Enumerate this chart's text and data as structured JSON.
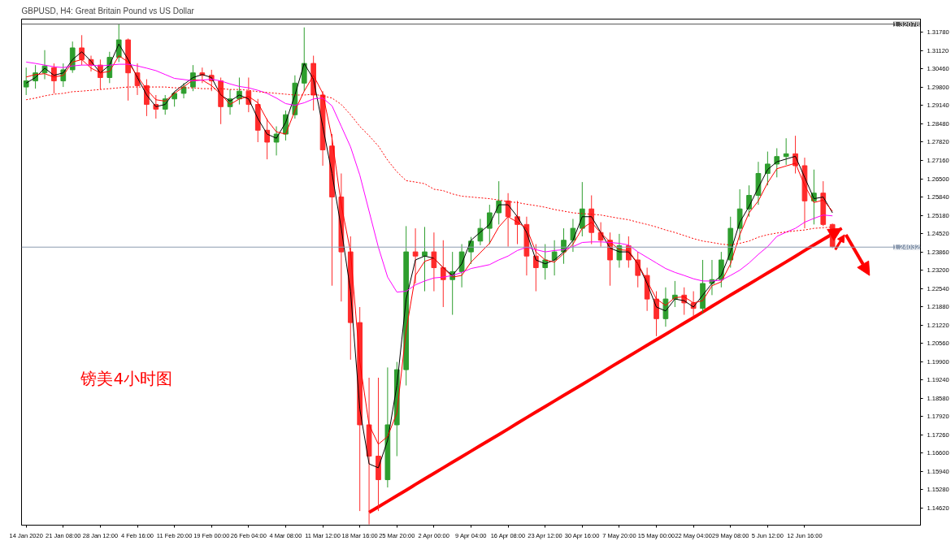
{
  "chart_data": {
    "type": "candlestick",
    "title": "GBPUSD, H4: Great Britain Pound vs US Dollar",
    "annotations": [
      "镑美4小时图"
    ],
    "categories": [
      "14 Jan 2020",
      null,
      null,
      null,
      "21 Jan 08:00",
      null,
      null,
      null,
      "28 Jan 12:00",
      null,
      null,
      null,
      "4 Feb 16:00",
      null,
      null,
      null,
      "11 Feb 20:00",
      null,
      null,
      null,
      "19 Feb 00:00",
      null,
      null,
      null,
      "26 Feb 04:00",
      null,
      null,
      null,
      "4 Mar 08:00",
      null,
      null,
      null,
      "11 Mar 12:00",
      null,
      null,
      null,
      "18 Mar 16:00",
      null,
      null,
      null,
      "25 Mar 20:00",
      null,
      null,
      null,
      "2 Apr 00:00",
      null,
      null,
      null,
      "9 Apr 04:00",
      null,
      null,
      null,
      "16 Apr 08:00",
      null,
      null,
      null,
      "23 Apr 12:00",
      null,
      null,
      null,
      "30 Apr 16:00",
      null,
      null,
      null,
      "7 May 20:00",
      null,
      null,
      null,
      "15 May 00:00",
      null,
      null,
      null,
      "22 May 04:00",
      null,
      null,
      null,
      "29 May 08:00",
      null,
      null,
      null,
      "5 Jun 12:00",
      null,
      null,
      null,
      "12 Jun 16:00",
      null,
      null,
      null,
      null,
      null,
      null,
      null,
      null,
      null,
      null,
      null,
      null
    ],
    "ohlc": [
      [
        1.2981,
        1.3051,
        1.2952,
        1.3003
      ],
      [
        1.3003,
        1.306,
        1.2975,
        1.3032
      ],
      [
        1.3032,
        1.3114,
        1.3009,
        1.3057
      ],
      [
        1.3051,
        1.3066,
        1.2958,
        1.3003
      ],
      [
        1.3003,
        1.3066,
        1.2981,
        1.3043
      ],
      [
        1.3043,
        1.3145,
        1.3032,
        1.3122
      ],
      [
        1.3122,
        1.3168,
        1.306,
        1.308
      ],
      [
        1.308,
        1.3094,
        1.3037,
        1.306
      ],
      [
        1.306,
        1.308,
        1.2972,
        1.3015
      ],
      [
        1.3015,
        1.3108,
        1.2995,
        1.3088
      ],
      [
        1.3088,
        1.3207,
        1.3071,
        1.3151
      ],
      [
        1.3151,
        1.3156,
        1.2932,
        1.3032
      ],
      [
        1.3032,
        1.3066,
        1.2952,
        1.2986
      ],
      [
        1.2986,
        1.3009,
        1.2876,
        1.2918
      ],
      [
        1.2918,
        1.2952,
        1.2867,
        1.2901
      ],
      [
        1.2901,
        1.2952,
        1.2881,
        1.2938
      ],
      [
        1.2938,
        1.2965,
        1.291,
        1.2958
      ],
      [
        1.2958,
        1.2995,
        1.294,
        1.2981
      ],
      [
        1.2981,
        1.306,
        1.2966,
        1.3032
      ],
      [
        1.3032,
        1.3051,
        1.2995,
        1.3023
      ],
      [
        1.3023,
        1.3043,
        1.2966,
        1.3003
      ],
      [
        1.3003,
        1.3015,
        1.2847,
        1.291
      ],
      [
        1.291,
        1.2972,
        1.2881,
        1.2938
      ],
      [
        1.2938,
        1.3015,
        1.2918,
        1.2966
      ],
      [
        1.2966,
        1.3015,
        1.289,
        1.2918
      ],
      [
        1.2918,
        1.2938,
        1.2782,
        1.2825
      ],
      [
        1.2825,
        1.2867,
        1.272,
        1.2782
      ],
      [
        1.2782,
        1.2839,
        1.2734,
        1.2811
      ],
      [
        1.2811,
        1.2896,
        1.2788,
        1.2881
      ],
      [
        1.2881,
        1.3023,
        1.2867,
        1.2995
      ],
      [
        1.2995,
        1.3196,
        1.2966,
        1.3066
      ],
      [
        1.3066,
        1.3094,
        1.2896,
        1.2952
      ],
      [
        1.2952,
        1.2966,
        1.2697,
        1.2754
      ],
      [
        1.2768,
        1.2811,
        1.2264,
        1.2584
      ],
      [
        1.2584,
        1.2669,
        1.2207,
        1.2386
      ],
      [
        1.2386,
        1.2442,
        1.1997,
        1.2131
      ],
      [
        1.2131,
        1.2187,
        1.1451,
        1.1762
      ],
      [
        1.1762,
        1.1932,
        1.1403,
        1.1649
      ],
      [
        1.1649,
        1.1932,
        1.1451,
        1.1564
      ],
      [
        1.1564,
        1.1969,
        1.1536,
        1.1762
      ],
      [
        1.1762,
        1.1989,
        1.1649,
        1.1961
      ],
      [
        1.1961,
        1.2479,
        1.1904,
        1.2386
      ],
      [
        1.2386,
        1.2471,
        1.2272,
        1.2371
      ],
      [
        1.2371,
        1.2476,
        1.2244,
        1.2386
      ],
      [
        1.2386,
        1.2456,
        1.2244,
        1.2329
      ],
      [
        1.2329,
        1.2428,
        1.2187,
        1.2286
      ],
      [
        1.2286,
        1.2386,
        1.2159,
        1.2315
      ],
      [
        1.2315,
        1.2414,
        1.2258,
        1.2386
      ],
      [
        1.2386,
        1.244,
        1.2343,
        1.2425
      ],
      [
        1.2425,
        1.2505,
        1.241,
        1.2471
      ],
      [
        1.2471,
        1.2556,
        1.2414,
        1.2527
      ],
      [
        1.2527,
        1.2641,
        1.2485,
        1.257
      ],
      [
        1.257,
        1.2598,
        1.2405,
        1.2513
      ],
      [
        1.2513,
        1.257,
        1.2414,
        1.2485
      ],
      [
        1.2485,
        1.2513,
        1.2301,
        1.2371
      ],
      [
        1.2371,
        1.2414,
        1.2244,
        1.2329
      ],
      [
        1.2329,
        1.2414,
        1.2286,
        1.2357
      ],
      [
        1.2357,
        1.2428,
        1.2301,
        1.2386
      ],
      [
        1.2386,
        1.2471,
        1.2343,
        1.2428
      ],
      [
        1.2428,
        1.2505,
        1.2386,
        1.2471
      ],
      [
        1.2471,
        1.2638,
        1.2442,
        1.2541
      ],
      [
        1.2541,
        1.259,
        1.2414,
        1.2456
      ],
      [
        1.2456,
        1.2493,
        1.2405,
        1.2428
      ],
      [
        1.2428,
        1.2456,
        1.2264,
        1.2357
      ],
      [
        1.2357,
        1.2451,
        1.2329,
        1.2408
      ],
      [
        1.2408,
        1.2442,
        1.2329,
        1.2357
      ],
      [
        1.2357,
        1.2386,
        1.2258,
        1.2301
      ],
      [
        1.2301,
        1.2329,
        1.2173,
        1.2216
      ],
      [
        1.2216,
        1.2244,
        1.2082,
        1.2145
      ],
      [
        1.2145,
        1.2258,
        1.2116,
        1.2216
      ],
      [
        1.2216,
        1.2281,
        1.2187,
        1.223
      ],
      [
        1.223,
        1.2258,
        1.2159,
        1.2202
      ],
      [
        1.2202,
        1.2244,
        1.2153,
        1.2182
      ],
      [
        1.2182,
        1.2357,
        1.2165,
        1.2272
      ],
      [
        1.2272,
        1.2357,
        1.223,
        1.2286
      ],
      [
        1.2286,
        1.2386,
        1.2258,
        1.2357
      ],
      [
        1.2357,
        1.2513,
        1.2329,
        1.2471
      ],
      [
        1.2471,
        1.2612,
        1.2428,
        1.2541
      ],
      [
        1.2541,
        1.2626,
        1.2513,
        1.259
      ],
      [
        1.259,
        1.2711,
        1.2556,
        1.2669
      ],
      [
        1.2669,
        1.2748,
        1.2626,
        1.2703
      ],
      [
        1.2703,
        1.276,
        1.2655,
        1.273
      ],
      [
        1.273,
        1.2796,
        1.27,
        1.274
      ],
      [
        1.274,
        1.2805,
        1.2669,
        1.2697
      ],
      [
        1.2697,
        1.2726,
        1.2471,
        1.257
      ],
      [
        1.257,
        1.2683,
        1.2485,
        1.2598
      ],
      [
        1.2598,
        1.2641,
        1.2479,
        1.2485
      ],
      [
        1.2485,
        1.2488,
        1.24,
        1.2405
      ],
      null,
      null,
      null,
      null,
      null,
      null,
      null,
      null,
      null
    ],
    "colors": [
      "#2e9e2e",
      "#2e9e2e",
      "#2e9e2e",
      "#ff2b2b",
      "#2e9e2e",
      "#2e9e2e",
      "#ff2b2b",
      "#ff2b2b",
      "#ff2b2b",
      "#2e9e2e",
      "#2e9e2e",
      "#ff2b2b",
      "#ff2b2b",
      "#ff2b2b",
      "#ff2b2b",
      "#2e9e2e",
      "#2e9e2e",
      "#2e9e2e",
      "#2e9e2e",
      "#ff2b2b",
      "#ff2b2b",
      "#ff2b2b",
      "#2e9e2e",
      "#2e9e2e",
      "#ff2b2b",
      "#ff2b2b",
      "#ff2b2b",
      "#2e9e2e",
      "#2e9e2e",
      "#2e9e2e",
      "#2e9e2e",
      "#ff2b2b",
      "#ff2b2b",
      "#ff2b2b",
      "#ff2b2b",
      "#ff2b2b",
      "#ff2b2b",
      "#ff2b2b",
      "#ff2b2b",
      "#2e9e2e",
      "#2e9e2e",
      "#2e9e2e",
      "#ff2b2b",
      "#2e9e2e",
      "#ff2b2b",
      "#ff2b2b",
      "#2e9e2e",
      "#2e9e2e",
      "#2e9e2e",
      "#2e9e2e",
      "#2e9e2e",
      "#2e9e2e",
      "#ff2b2b",
      "#ff2b2b",
      "#ff2b2b",
      "#ff2b2b",
      "#2e9e2e",
      "#2e9e2e",
      "#2e9e2e",
      "#2e9e2e",
      "#2e9e2e",
      "#ff2b2b",
      "#ff2b2b",
      "#ff2b2b",
      "#2e9e2e",
      "#ff2b2b",
      "#ff2b2b",
      "#ff2b2b",
      "#ff2b2b",
      "#2e9e2e",
      "#2e9e2e",
      "#ff2b2b",
      "#ff2b2b",
      "#2e9e2e",
      "#2e9e2e",
      "#2e9e2e",
      "#2e9e2e",
      "#2e9e2e",
      "#2e9e2e",
      "#2e9e2e",
      "#2e9e2e",
      "#2e9e2e",
      "#2e9e2e",
      "#ff2b2b",
      "#ff2b2b",
      "#2e9e2e",
      "#ff2b2b",
      "#ff2b2b",
      null,
      null,
      null,
      null,
      null,
      null,
      null,
      null,
      null
    ],
    "series": [
      {
        "type": "line",
        "color": "#000000",
        "values": [
          1.2995,
          1.3015,
          1.3049,
          1.3023,
          1.3032,
          1.308,
          1.3108,
          1.3074,
          1.3032,
          1.306,
          1.3136,
          1.308,
          1.3015,
          1.2952,
          1.291,
          1.2918,
          1.2964,
          1.299,
          1.3015,
          1.3026,
          1.3015,
          1.2952,
          1.293,
          1.2952,
          1.2938,
          1.2867,
          1.2811,
          1.2796,
          1.2853,
          1.2952,
          1.3066,
          1.3009,
          1.2839,
          1.2669,
          1.2471,
          1.2244,
          1.1819,
          1.1621,
          1.1607,
          1.1706,
          1.1904,
          1.2216,
          1.2357,
          1.2371,
          1.2363,
          1.2329,
          1.2301,
          1.2343,
          1.2428,
          1.2457,
          1.2485,
          1.2556,
          1.2556,
          1.2513,
          1.2456,
          1.2357,
          1.2343,
          1.2357,
          1.2386,
          1.2428,
          1.2513,
          1.2513,
          1.2456,
          1.24,
          1.2386,
          1.2386,
          1.2343,
          1.2272,
          1.2187,
          1.2173,
          1.2216,
          1.221,
          1.2187,
          1.223,
          1.2272,
          1.2301,
          1.2386,
          1.2493,
          1.255,
          1.2618,
          1.2683,
          1.2711,
          1.2721,
          1.2731,
          1.2655,
          1.2578,
          1.2584,
          1.2527,
          null,
          null,
          null,
          null,
          null,
          null,
          null,
          null,
          null
        ]
      },
      {
        "type": "line",
        "color": "#ff0000",
        "values": [
          1.3017,
          1.3026,
          1.3029,
          1.3017,
          1.3023,
          1.3071,
          1.308,
          1.3049,
          1.3032,
          1.3037,
          1.3094,
          1.3071,
          1.302,
          1.2972,
          1.2935,
          1.293,
          1.2958,
          1.2982,
          1.3006,
          1.3006,
          1.2986,
          1.2955,
          1.2918,
          1.2938,
          1.2947,
          1.2924,
          1.2862,
          1.2819,
          1.2811,
          1.2896,
          1.2966,
          1.3023,
          1.2958,
          1.2796,
          1.2556,
          1.2386,
          1.1989,
          1.1762,
          1.1692,
          1.172,
          1.1805,
          1.2102,
          1.2301,
          1.2352,
          1.2363,
          1.2329,
          1.2295,
          1.2301,
          1.2349,
          1.2383,
          1.2417,
          1.2476,
          1.2513,
          1.2493,
          1.2471,
          1.2386,
          1.2357,
          1.2349,
          1.238,
          1.2414,
          1.2471,
          1.2493,
          1.2454,
          1.2422,
          1.2394,
          1.2391,
          1.2343,
          1.2281,
          1.2216,
          1.2193,
          1.2221,
          1.2224,
          1.2202,
          1.221,
          1.2264,
          1.2278,
          1.2343,
          1.2448,
          1.2527,
          1.257,
          1.2635,
          1.2686,
          1.2696,
          1.2706,
          1.2626,
          1.2564,
          1.2573,
          1.2533,
          null,
          null,
          null,
          null,
          null,
          null,
          null,
          null,
          null
        ]
      },
      {
        "type": "line",
        "color": "#ff00ff",
        "values": [
          1.3071,
          1.3066,
          1.306,
          1.3054,
          1.3051,
          1.3057,
          1.306,
          1.306,
          1.3057,
          1.306,
          1.3063,
          1.3063,
          1.3057,
          1.3049,
          1.304,
          1.3026,
          1.3012,
          1.3008,
          1.3003,
          1.3006,
          1.3009,
          1.3003,
          1.2992,
          1.2983,
          1.2978,
          1.2969,
          1.2958,
          1.2941,
          1.2921,
          1.2915,
          1.2924,
          1.2938,
          1.2941,
          1.2913,
          1.2839,
          1.2765,
          1.2663,
          1.2533,
          1.2403,
          1.2295,
          1.2241,
          1.2244,
          1.2267,
          1.2281,
          1.2292,
          1.2295,
          1.2301,
          1.2312,
          1.2326,
          1.2333,
          1.234,
          1.2357,
          1.2371,
          1.2391,
          1.2403,
          1.2394,
          1.2386,
          1.2391,
          1.2394,
          1.2405,
          1.242,
          1.2422,
          1.2422,
          1.242,
          1.2417,
          1.2411,
          1.2386,
          1.2366,
          1.2346,
          1.2326,
          1.2312,
          1.2301,
          1.2289,
          1.2281,
          1.2281,
          1.2284,
          1.2301,
          1.232,
          1.2346,
          1.2377,
          1.2405,
          1.2442,
          1.2457,
          1.2471,
          1.2493,
          1.2507,
          1.2519,
          1.2516,
          null,
          null,
          null,
          null,
          null,
          null,
          null,
          null,
          null
        ]
      },
      {
        "type": "line",
        "color": "#ff0000",
        "line_style": "dotted",
        "values": [
          1.2935,
          1.2941,
          1.2949,
          1.2955,
          1.2958,
          1.2964,
          1.2966,
          1.2969,
          1.2972,
          1.2975,
          1.2978,
          1.2981,
          1.2981,
          1.2981,
          1.2981,
          1.2981,
          1.2978,
          1.2978,
          1.2978,
          1.2975,
          1.2975,
          1.2975,
          1.2972,
          1.2972,
          1.2969,
          1.2964,
          1.2961,
          1.2958,
          1.2955,
          1.2952,
          1.2952,
          1.2955,
          1.2949,
          1.2941,
          1.2918,
          1.2881,
          1.2839,
          1.2805,
          1.2768,
          1.2717,
          1.2675,
          1.2643,
          1.2638,
          1.2632,
          1.2612,
          1.2607,
          1.2595,
          1.2587,
          1.2584,
          1.2581,
          1.2578,
          1.2573,
          1.2567,
          1.2564,
          1.2558,
          1.2553,
          1.2547,
          1.2539,
          1.2533,
          1.2527,
          1.2524,
          1.2522,
          1.2519,
          1.2513,
          1.2507,
          1.2502,
          1.2493,
          1.2485,
          1.2476,
          1.2465,
          1.2456,
          1.2445,
          1.2434,
          1.2425,
          1.242,
          1.2414,
          1.2411,
          1.2417,
          1.2425,
          1.2439,
          1.2448,
          1.2454,
          1.2458,
          1.2462,
          1.2465,
          1.2471,
          1.2473,
          1.2476,
          null,
          null,
          null,
          null,
          null,
          null,
          null,
          null,
          null
        ]
      },
      {
        "type": "line",
        "color": "#ff0000",
        "values": [
          null,
          null,
          null,
          null,
          null,
          null,
          null,
          null,
          null,
          null,
          null,
          null,
          null,
          null,
          null,
          null,
          null,
          null,
          null,
          null,
          null,
          null,
          null,
          null,
          null,
          null,
          null,
          null,
          null,
          null,
          null,
          null,
          null,
          null,
          null,
          null,
          null,
          1.1446,
          1.1466,
          1.1486,
          1.1506,
          1.1526,
          1.1547,
          1.1567,
          1.1587,
          1.1607,
          1.1627,
          1.1647,
          1.1667,
          1.1687,
          1.1707,
          1.1727,
          1.1747,
          1.1768,
          1.1788,
          1.1808,
          1.1828,
          1.1848,
          1.1868,
          1.1888,
          1.1908,
          1.1928,
          1.1948,
          1.1969,
          1.1989,
          1.2009,
          1.2029,
          1.2049,
          1.2069,
          1.2089,
          1.2109,
          1.2129,
          1.2149,
          1.2169,
          1.219,
          1.221,
          1.223,
          1.225,
          1.227,
          1.229,
          1.231,
          1.233,
          1.235,
          1.237,
          1.2391,
          1.2411,
          1.2431,
          1.2451,
          1.2471,
          null,
          null,
          null,
          null,
          null,
          null,
          null,
          null
        ]
      }
    ],
    "ref_lines": [
      {
        "axis": "y",
        "value": 1.24032,
        "label": "1.24032",
        "color": "#8c9bb0"
      },
      {
        "axis": "y",
        "value": 1.32078,
        "label": "1.32078",
        "color": "#505050"
      }
    ],
    "ylim": [
      1.14,
      1.3226
    ],
    "yticks": [
      {
        "value": 1.1462,
        "label": "1.14620"
      },
      {
        "value": 1.1528,
        "label": "1.15280"
      },
      {
        "value": 1.1594,
        "label": "1.15940"
      },
      {
        "value": 1.166,
        "label": "1.16600"
      },
      {
        "value": 1.1726,
        "label": "1.17260"
      },
      {
        "value": 1.1792,
        "label": "1.17920"
      },
      {
        "value": 1.1858,
        "label": "1.18580"
      },
      {
        "value": 1.1924,
        "label": "1.19240"
      },
      {
        "value": 1.199,
        "label": "1.19900"
      },
      {
        "value": 1.2056,
        "label": "1.20560"
      },
      {
        "value": 1.2122,
        "label": "1.21220"
      },
      {
        "value": 1.2188,
        "label": "1.21880"
      },
      {
        "value": 1.2254,
        "label": "1.22540"
      },
      {
        "value": 1.232,
        "label": "1.23200"
      },
      {
        "value": 1.2386,
        "label": "1.23860"
      },
      {
        "value": 1.2452,
        "label": "1.24520"
      },
      {
        "value": 1.2518,
        "label": "1.25180"
      },
      {
        "value": 1.2584,
        "label": "1.25840"
      },
      {
        "value": 1.265,
        "label": "1.26500"
      },
      {
        "value": 1.2716,
        "label": "1.27160"
      },
      {
        "value": 1.2782,
        "label": "1.27820"
      },
      {
        "value": 1.2848,
        "label": "1.28480"
      },
      {
        "value": 1.2914,
        "label": "1.29140"
      },
      {
        "value": 1.298,
        "label": "1.29800"
      },
      {
        "value": 1.3046,
        "label": "1.30460"
      },
      {
        "value": 1.3112,
        "label": "1.31120"
      },
      {
        "value": 1.3178,
        "label": "1.31780"
      }
    ]
  }
}
